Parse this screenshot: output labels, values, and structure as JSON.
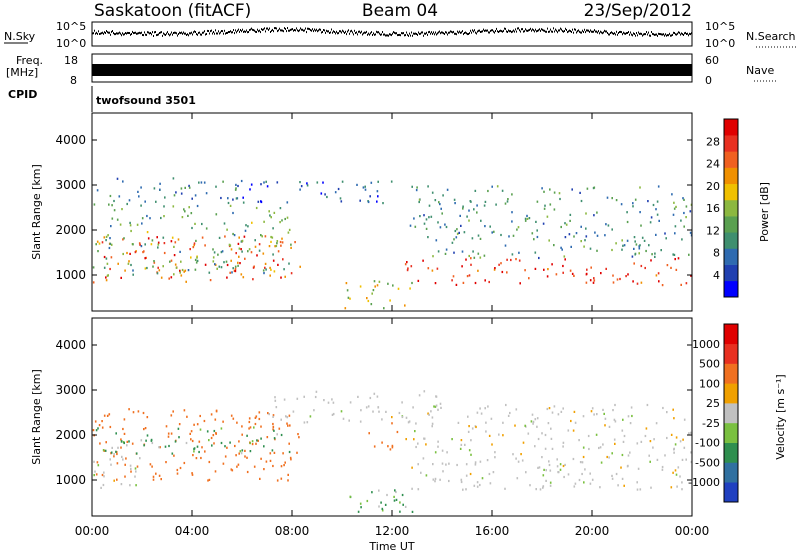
{
  "header": {
    "station": "Saskatoon (fitACF)",
    "beam": "Beam 04",
    "date": "23/Sep/2012"
  },
  "panels": {
    "nsky": {
      "label": "N.Sky",
      "yticks": [
        "10^5",
        "10^0"
      ],
      "rlabel": "N.Search",
      "rticks": [
        "10^5",
        "10^0"
      ]
    },
    "freq": {
      "label_top": "Freq.",
      "label_bot": "[MHz]",
      "yticks": [
        "18",
        "8"
      ],
      "rlabel": "Nave",
      "rticks": [
        "60",
        "0"
      ]
    },
    "cpid": {
      "label": "CPID",
      "value": "twofsound 3501"
    }
  },
  "chart_data": [
    {
      "type": "heatmap",
      "name": "power",
      "ylabel": "Slant Range [km]",
      "yticks": [
        "4000",
        "3000",
        "2000",
        "1000"
      ],
      "ylim": [
        200,
        4600
      ],
      "xlim": [
        0,
        24
      ],
      "colorbar": {
        "label": "Power [dB]",
        "ticks": [
          "28",
          "24",
          "20",
          "16",
          "12",
          "8",
          "4"
        ],
        "colors": [
          "#0000ff",
          "#2040b0",
          "#2f6bb0",
          "#3f8f6f",
          "#5aa050",
          "#8cb840",
          "#f0c000",
          "#f09000",
          "#f06020",
          "#e83020",
          "#e00000"
        ]
      },
      "bands": [
        {
          "t0": 0.0,
          "t1": 8.3,
          "r0": 850,
          "r1": 1900,
          "value": 24
        },
        {
          "t0": 0.0,
          "t1": 8.0,
          "r0": 1000,
          "r1": 2600,
          "value": 12
        },
        {
          "t0": 0.0,
          "t1": 6.0,
          "r0": 2600,
          "r1": 3200,
          "value": 8
        },
        {
          "t0": 12.5,
          "t1": 24.0,
          "r0": 800,
          "r1": 1400,
          "value": 26
        },
        {
          "t0": 12.5,
          "t1": 24.0,
          "r0": 1400,
          "r1": 3000,
          "value": 10
        },
        {
          "t0": 10.0,
          "t1": 12.8,
          "r0": 250,
          "r1": 900,
          "value": 16
        },
        {
          "t0": 6.0,
          "t1": 13.0,
          "r0": 2600,
          "r1": 3100,
          "value": 6
        }
      ]
    },
    {
      "type": "heatmap",
      "name": "velocity",
      "ylabel": "Slant Range [km]",
      "yticks": [
        "4000",
        "3000",
        "2000",
        "1000"
      ],
      "ylim": [
        200,
        4600
      ],
      "xlim": [
        0,
        24
      ],
      "colorbar": {
        "label": "Velocity [m s⁻¹]",
        "ticks": [
          "1000",
          "500",
          "100",
          "25",
          "-25",
          "-100",
          "-500",
          "-1000"
        ],
        "colors": [
          "#2040c0",
          "#3070a0",
          "#2f8f4f",
          "#7ac040",
          "#c0c0c0",
          "#f0a000",
          "#f07020",
          "#e83020",
          "#e00000"
        ]
      },
      "bands": [
        {
          "t0": 0.0,
          "t1": 8.3,
          "r0": 1000,
          "r1": 2600,
          "value": -300
        },
        {
          "t0": 0.0,
          "t1": 8.0,
          "r0": 1600,
          "r1": 2200,
          "value": 80
        },
        {
          "t0": 0.0,
          "t1": 2.0,
          "r0": 800,
          "r1": 1800,
          "value": 0
        },
        {
          "t0": 12.5,
          "t1": 24.0,
          "r0": 800,
          "r1": 2700,
          "value": 0
        },
        {
          "t0": 7.0,
          "t1": 14.0,
          "r0": 2300,
          "r1": 3000,
          "value": 0
        },
        {
          "t0": 9.0,
          "t1": 13.0,
          "r0": 300,
          "r1": 800,
          "value": 60
        },
        {
          "t0": 11.0,
          "t1": 12.2,
          "r0": 1700,
          "r1": 2300,
          "value": -300
        }
      ]
    }
  ],
  "xaxis": {
    "label": "Time UT",
    "ticks": [
      "00:00",
      "04:00",
      "08:00",
      "12:00",
      "16:00",
      "20:00",
      "00:00"
    ],
    "range": [
      0,
      24
    ]
  }
}
